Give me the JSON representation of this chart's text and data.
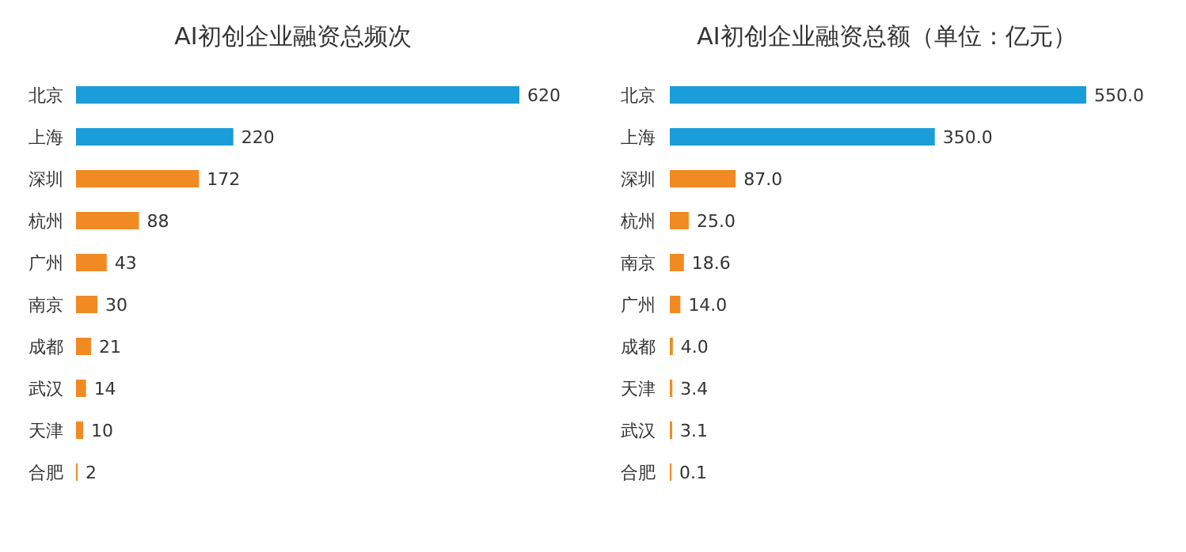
{
  "chart_data": [
    {
      "type": "bar",
      "orientation": "horizontal",
      "title": "AI初创企业融资总频次",
      "categories": [
        "北京",
        "上海",
        "深圳",
        "杭州",
        "广州",
        "南京",
        "成都",
        "武汉",
        "天津",
        "合肥"
      ],
      "values": [
        620,
        220,
        172,
        88,
        43,
        30,
        21,
        14,
        10,
        2
      ],
      "colors": [
        "#1a9dd9",
        "#1a9dd9",
        "#f18a23",
        "#f18a23",
        "#f18a23",
        "#f18a23",
        "#f18a23",
        "#f18a23",
        "#f18a23",
        "#f18a23"
      ],
      "data_labels": true
    },
    {
      "type": "bar",
      "orientation": "horizontal",
      "title": "AI初创企业融资总额（单位：亿元）",
      "categories": [
        "北京",
        "上海",
        "深圳",
        "杭州",
        "南京",
        "广州",
        "成都",
        "天津",
        "武汉",
        "合肥"
      ],
      "values": [
        550,
        350,
        87,
        25,
        18.6,
        14,
        4,
        3.4,
        3.1,
        0.1
      ],
      "value_labels": [
        "550.0",
        "350.0",
        "87.0",
        "25.0",
        "18.6",
        "14.0",
        "4.0",
        "3.4",
        "3.1",
        "0.1"
      ],
      "colors": [
        "#1a9dd9",
        "#1a9dd9",
        "#f18a23",
        "#f18a23",
        "#f18a23",
        "#f18a23",
        "#f18a23",
        "#f18a23",
        "#f18a23",
        "#f18a23"
      ]
    }
  ]
}
